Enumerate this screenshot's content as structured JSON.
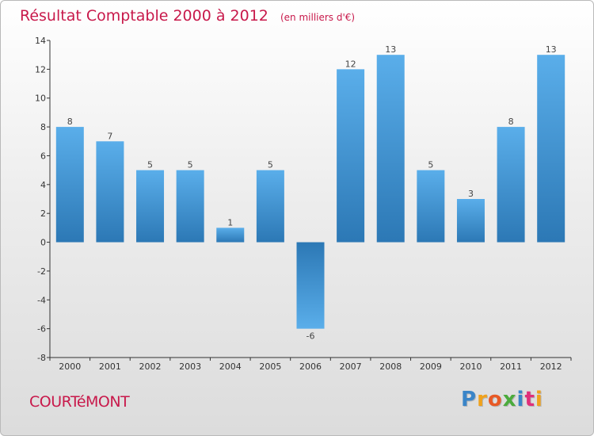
{
  "chart_data": {
    "type": "bar",
    "title": "Résultat Comptable 2000 à 2012",
    "unit_note": "(en milliers d'€)",
    "categories": [
      "2000",
      "2001",
      "2002",
      "2003",
      "2004",
      "2005",
      "2006",
      "2007",
      "2008",
      "2009",
      "2010",
      "2011",
      "2012"
    ],
    "values": [
      8,
      7,
      5,
      5,
      1,
      5,
      -6,
      12,
      13,
      5,
      3,
      8,
      13
    ],
    "data_labels": [
      "8",
      "7",
      "5",
      "5",
      "1",
      "5",
      "-6",
      "12",
      "13",
      "5",
      "3",
      "8",
      "13"
    ],
    "ylim": [
      -8,
      14
    ],
    "yticks": [
      -8,
      -6,
      -4,
      -2,
      0,
      2,
      4,
      6,
      8,
      10,
      12,
      14
    ],
    "xlabel": "",
    "ylabel": "",
    "grid": false,
    "colors": {
      "bar_light": "#5aaeea",
      "bar_dark": "#2c78b5",
      "text": "#c8194b"
    }
  },
  "footer": {
    "commune": "COURTéMONT",
    "logo": [
      "P",
      "r",
      "o",
      "x",
      "i",
      "t",
      "i"
    ],
    "logo_colors": [
      "#3a85c8",
      "#f0a21c",
      "#e85a26",
      "#4bab3c",
      "#3a85c8",
      "#e02f7a",
      "#f0a21c"
    ]
  }
}
